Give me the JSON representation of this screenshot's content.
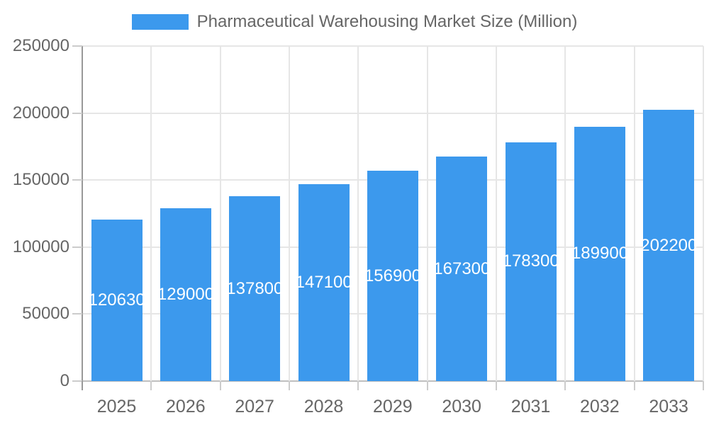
{
  "chart_data": {
    "type": "bar",
    "title": "Pharmaceutical Warehousing Market Size (Million)",
    "legend_position": "top",
    "categories": [
      "2025",
      "2026",
      "2027",
      "2028",
      "2029",
      "2030",
      "2031",
      "2032",
      "2033"
    ],
    "values": [
      120630,
      129000,
      137800,
      147100,
      156900,
      167300,
      178300,
      189900,
      202200
    ],
    "value_labels": [
      "120630",
      "129000",
      "137800",
      "147100",
      "156900",
      "167300",
      "178300",
      "189900",
      "202200"
    ],
    "xlabel": "",
    "ylabel": "",
    "ylim": [
      0,
      250000
    ],
    "y_ticks": [
      "0",
      "50000",
      "100000",
      "150000",
      "200000",
      "250000"
    ],
    "grid": "on",
    "colors": {
      "bar": "#3C99ED",
      "axis_text": "#666666",
      "gridline": "#E6E6E6",
      "axis_line": "#999999",
      "value_label_text": "#FFFFFF"
    }
  }
}
